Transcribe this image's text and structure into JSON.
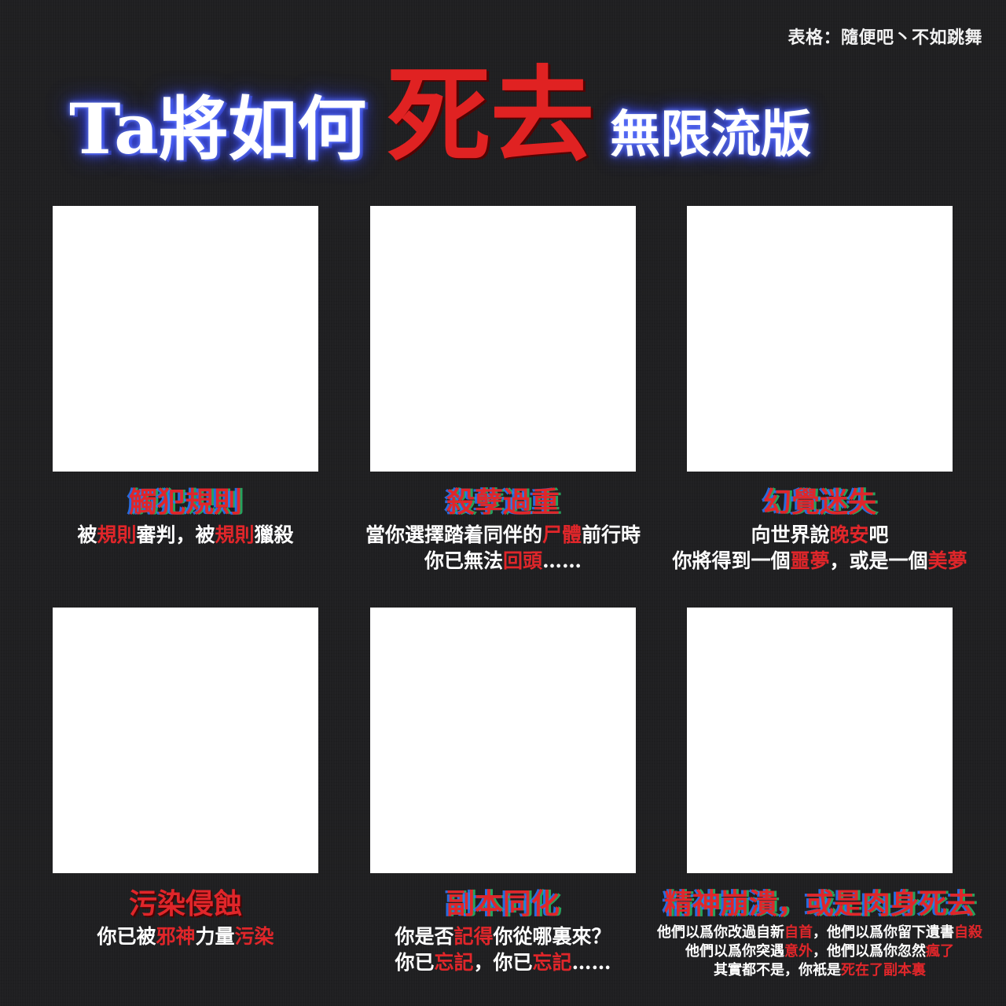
{
  "credit": "表格：隨便吧丶不如跳舞",
  "title": {
    "part1": "Ta將如何",
    "part2": "死去",
    "part3": "無限流版"
  },
  "cells": [
    {
      "title": "觸犯規則",
      "lines": [
        [
          {
            "t": "被",
            "r": false
          },
          {
            "t": "規則",
            "r": true
          },
          {
            "t": "審判，被",
            "r": false
          },
          {
            "t": "規則",
            "r": true
          },
          {
            "t": "獵殺",
            "r": false
          }
        ]
      ]
    },
    {
      "title": "殺孽過重",
      "lines": [
        [
          {
            "t": "當你選擇踏着同伴的",
            "r": false
          },
          {
            "t": "尸體",
            "r": true
          },
          {
            "t": "前行時",
            "r": false
          }
        ],
        [
          {
            "t": "你已無法",
            "r": false
          },
          {
            "t": "回頭",
            "r": true
          },
          {
            "t": "……",
            "r": false
          }
        ]
      ]
    },
    {
      "title": "幻覺迷失",
      "lines": [
        [
          {
            "t": "向世界說",
            "r": false
          },
          {
            "t": "晚安",
            "r": true
          },
          {
            "t": "吧",
            "r": false
          }
        ],
        [
          {
            "t": "你將得到一個",
            "r": false
          },
          {
            "t": "噩夢",
            "r": true
          },
          {
            "t": "，或是一個",
            "r": false
          },
          {
            "t": "美夢",
            "r": true
          }
        ]
      ]
    },
    {
      "title": "污染侵蝕",
      "lines": [
        [
          {
            "t": "你已被",
            "r": false
          },
          {
            "t": "邪神",
            "r": true
          },
          {
            "t": "力量",
            "r": false
          },
          {
            "t": "污染",
            "r": true
          }
        ]
      ]
    },
    {
      "title": "副本同化",
      "lines": [
        [
          {
            "t": "你是否",
            "r": false
          },
          {
            "t": "記得",
            "r": true
          },
          {
            "t": "你從哪裏來？",
            "r": false
          }
        ],
        [
          {
            "t": "你已",
            "r": false
          },
          {
            "t": "忘記",
            "r": true
          },
          {
            "t": "，你已",
            "r": false
          },
          {
            "t": "忘記",
            "r": true
          },
          {
            "t": "……",
            "r": false
          }
        ]
      ]
    },
    {
      "title": "精神崩潰，或是肉身死去",
      "lines": [
        [
          {
            "t": "他們以爲你改過自新",
            "r": false
          },
          {
            "t": "自首",
            "r": true
          },
          {
            "t": "，他們以爲你留下遺書",
            "r": false
          },
          {
            "t": "自殺",
            "r": true
          }
        ],
        [
          {
            "t": "他們以爲你突遇",
            "r": false
          },
          {
            "t": "意外",
            "r": true
          },
          {
            "t": "，他們以爲你忽然",
            "r": false
          },
          {
            "t": "瘋了",
            "r": true
          }
        ],
        [
          {
            "t": "其實都不是，你衹是",
            "r": false
          },
          {
            "t": "死在了副本裏",
            "r": true
          }
        ]
      ]
    }
  ],
  "colors": {
    "background": "#1f1f21",
    "accent_red": "#e0262a",
    "glow_blue": "#4257ff",
    "panel": "#ffffff"
  }
}
